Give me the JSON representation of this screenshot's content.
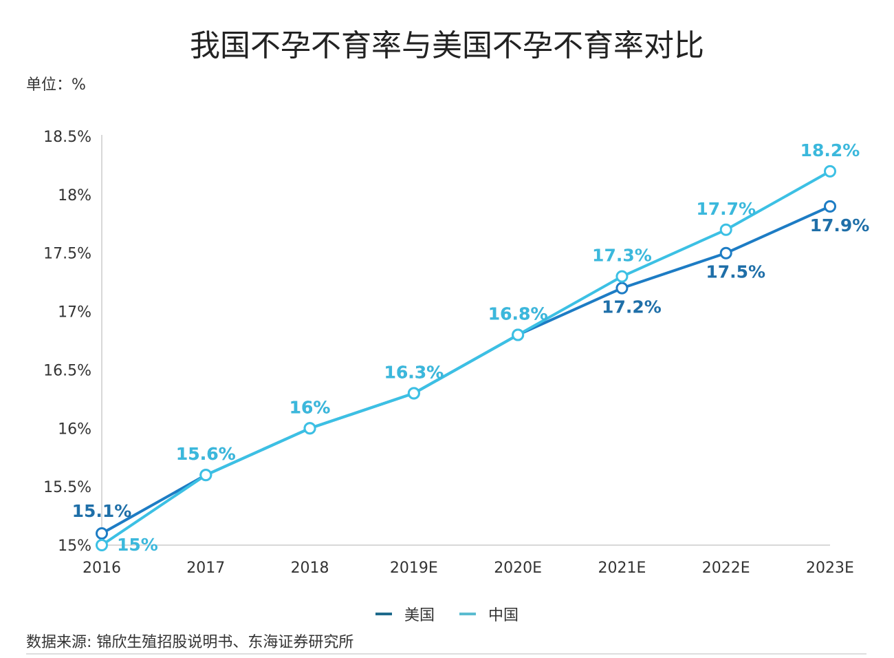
{
  "title": "我国不孕不育率与美国不孕不育率对比",
  "unit": "单位：%",
  "source": "数据来源: 锦欣生殖招股说明书、东海证券研究所",
  "chart_data": {
    "type": "line",
    "title": "我国不孕不育率与美国不孕不育率对比",
    "categories": [
      "2016",
      "2017",
      "2018",
      "2019E",
      "2020E",
      "2021E",
      "2022E",
      "2023E"
    ],
    "ylim": [
      15,
      18.5
    ],
    "yticks": [
      15,
      15.5,
      16,
      16.5,
      17,
      17.5,
      18,
      18.5
    ],
    "ytick_labels": [
      "15%",
      "15.5%",
      "16%",
      "16.5%",
      "17%",
      "17.5%",
      "18%",
      "18.5%"
    ],
    "grid": false,
    "legend_placement": "bottom",
    "series": [
      {
        "name": "美国",
        "color": "#1d7cc4",
        "label_color": "#1f6fa8",
        "legend_color": "#1e6a8c",
        "values": [
          15.1,
          15.6,
          16,
          16.3,
          16.8,
          17.2,
          17.5,
          17.9
        ],
        "labels": [
          "15.1%",
          "15.6%",
          "16%",
          "16.3%",
          "16.8%",
          "17.2%",
          "17.5%",
          "17.9%"
        ]
      },
      {
        "name": "中国",
        "color": "#3cc0e4",
        "label_color": "#3bb8dc",
        "legend_color": "#5bbcd0",
        "values": [
          15,
          15.6,
          16,
          16.3,
          16.8,
          17.3,
          17.7,
          18.2
        ],
        "labels": [
          "15%",
          "15.6%",
          "16%",
          "16.3%",
          "16.8%",
          "17.3%",
          "17.7%",
          "18.2%"
        ]
      }
    ]
  }
}
